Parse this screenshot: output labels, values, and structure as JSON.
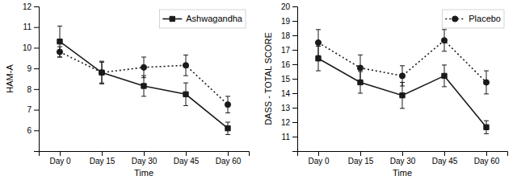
{
  "chart_data": [
    {
      "type": "line",
      "categories": [
        "Day 0",
        "Day 15",
        "Day 30",
        "Day 45",
        "Day 60"
      ],
      "xlabel": "Time",
      "ylabel": "HAM-A",
      "ylim": [
        5,
        12
      ],
      "yticks": [
        6,
        7,
        8,
        9,
        10,
        11,
        12
      ],
      "grid": false,
      "legend": "upper right",
      "series": [
        {
          "name": "Ashwagandha",
          "color": "#1a1a1a",
          "marker": "square",
          "line_style": "solid",
          "values": [
            10.3,
            8.8,
            8.15,
            7.75,
            6.1
          ],
          "errors": [
            0.75,
            0.55,
            0.5,
            0.55,
            0.3
          ]
        },
        {
          "color": "#1a1a1a",
          "marker": "circle",
          "line_style": "dotted",
          "values": [
            9.8,
            8.8,
            9.05,
            9.15,
            7.25
          ],
          "errors": [
            0.25,
            0.5,
            0.5,
            0.5,
            0.4
          ]
        }
      ]
    },
    {
      "type": "line",
      "categories": [
        "Day 0",
        "Day 15",
        "Day 30",
        "Day 45",
        "Day 60"
      ],
      "xlabel": "Time",
      "ylabel": "DASS - TOTAL SCORE",
      "ylim": [
        10,
        20
      ],
      "yticks": [
        11,
        12,
        13,
        14,
        15,
        16,
        17,
        18,
        19,
        20
      ],
      "grid": false,
      "legend": "upper right",
      "series": [
        {
          "color": "#1a1a1a",
          "marker": "square",
          "line_style": "solid",
          "values": [
            16.4,
            14.75,
            13.85,
            15.2,
            11.65
          ],
          "errors": [
            0.85,
            0.75,
            0.9,
            0.75,
            0.45
          ]
        },
        {
          "name": "Placebo",
          "color": "#1a1a1a",
          "marker": "circle",
          "line_style": "dotted",
          "values": [
            17.5,
            15.75,
            15.2,
            17.65,
            14.75
          ],
          "errors": [
            0.9,
            0.9,
            0.7,
            0.75,
            0.8
          ]
        }
      ]
    }
  ]
}
